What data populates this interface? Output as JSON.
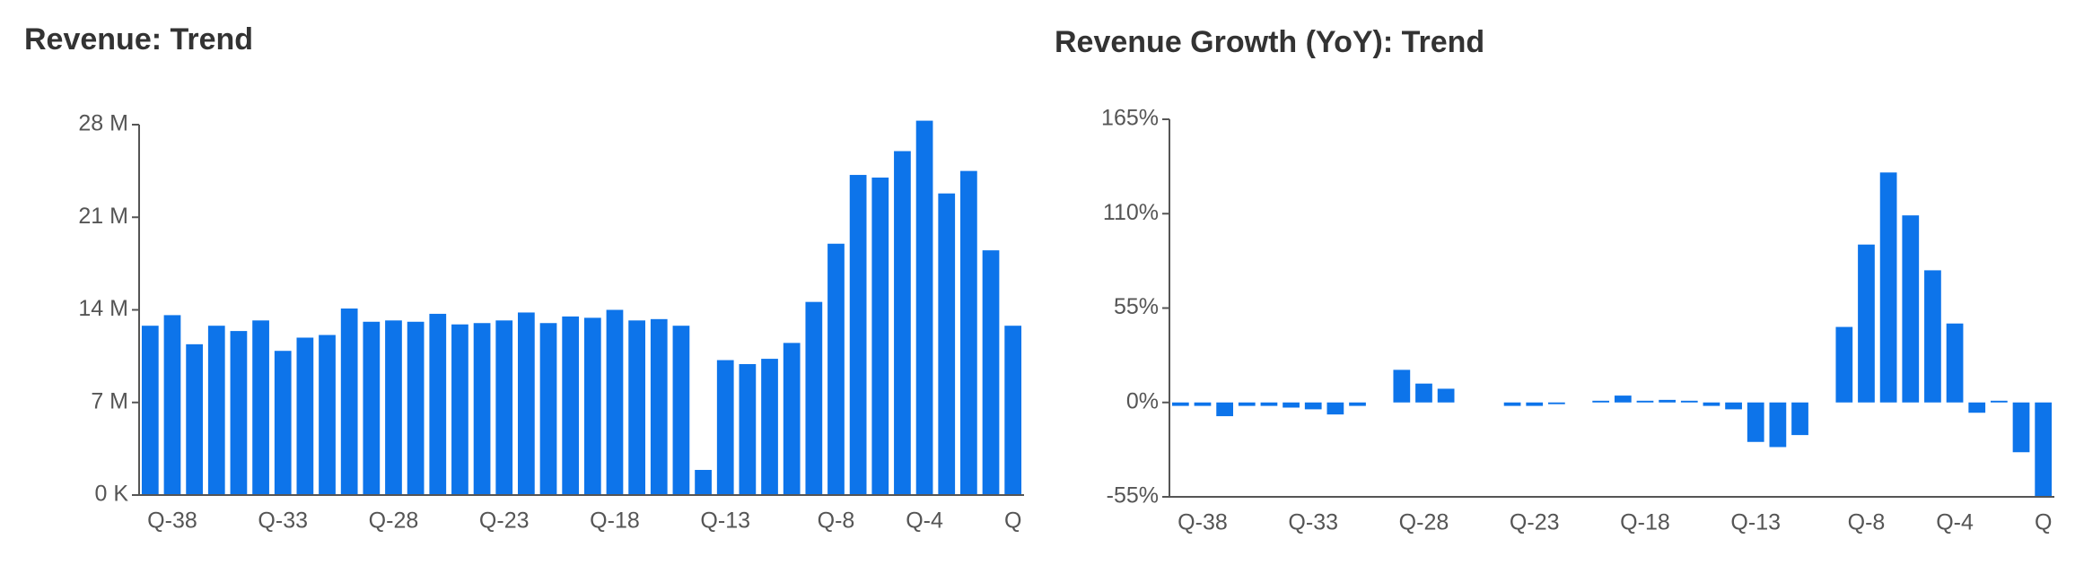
{
  "chart_data": [
    {
      "type": "bar",
      "title": "Revenue: Trend",
      "color": "#0d74ea",
      "categories": [
        null,
        "Q-38",
        null,
        null,
        null,
        null,
        "Q-33",
        null,
        null,
        null,
        null,
        "Q-28",
        null,
        null,
        null,
        null,
        "Q-23",
        null,
        null,
        null,
        null,
        "Q-18",
        null,
        null,
        null,
        null,
        "Q-13",
        null,
        null,
        null,
        null,
        "Q-8",
        null,
        null,
        null,
        "Q-4",
        null,
        null,
        null,
        "Q"
      ],
      "values": [
        12.8,
        13.6,
        11.4,
        12.8,
        12.4,
        13.2,
        10.9,
        11.9,
        12.1,
        14.1,
        13.1,
        13.2,
        13.1,
        13.7,
        12.9,
        13.0,
        13.2,
        13.8,
        13.0,
        13.5,
        13.4,
        14.0,
        13.2,
        13.3,
        12.8,
        1.9,
        10.2,
        9.9,
        10.3,
        11.5,
        14.6,
        19.0,
        24.2,
        24.0,
        26.0,
        28.3,
        22.8,
        24.5,
        18.5,
        12.8
      ],
      "ylim": [
        0,
        28
      ],
      "yticks": [
        {
          "value": 0,
          "label": "0 K"
        },
        {
          "value": 7,
          "label": "7 M"
        },
        {
          "value": 14,
          "label": "14 M"
        },
        {
          "value": 21,
          "label": "21 M"
        },
        {
          "value": 28,
          "label": "28 M"
        }
      ]
    },
    {
      "type": "bar",
      "title": "Revenue Growth (YoY): Trend",
      "color": "#0d74ea",
      "categories": [
        null,
        "Q-38",
        null,
        null,
        null,
        null,
        "Q-33",
        null,
        null,
        null,
        null,
        "Q-28",
        null,
        null,
        null,
        null,
        "Q-23",
        null,
        null,
        null,
        null,
        "Q-18",
        null,
        null,
        null,
        null,
        "Q-13",
        null,
        null,
        null,
        null,
        "Q-8",
        null,
        null,
        null,
        "Q-4",
        null,
        null,
        null,
        "Q"
      ],
      "values": [
        -2,
        -2,
        -8,
        -2,
        -2,
        -3,
        -4,
        -7,
        -2,
        null,
        19,
        11,
        8,
        null,
        null,
        -2,
        -2,
        -1,
        null,
        1,
        4,
        1,
        1.5,
        1,
        -2,
        -4,
        -23,
        -26,
        -19,
        null,
        44,
        92,
        134,
        109,
        77,
        46,
        -6,
        1,
        -29,
        -55
      ],
      "ylim": [
        -55,
        165
      ],
      "yticks": [
        {
          "value": -55,
          "label": "-55%"
        },
        {
          "value": 0,
          "label": "0%"
        },
        {
          "value": 55,
          "label": "55%"
        },
        {
          "value": 110,
          "label": "110%"
        },
        {
          "value": 165,
          "label": "165%"
        }
      ]
    }
  ]
}
